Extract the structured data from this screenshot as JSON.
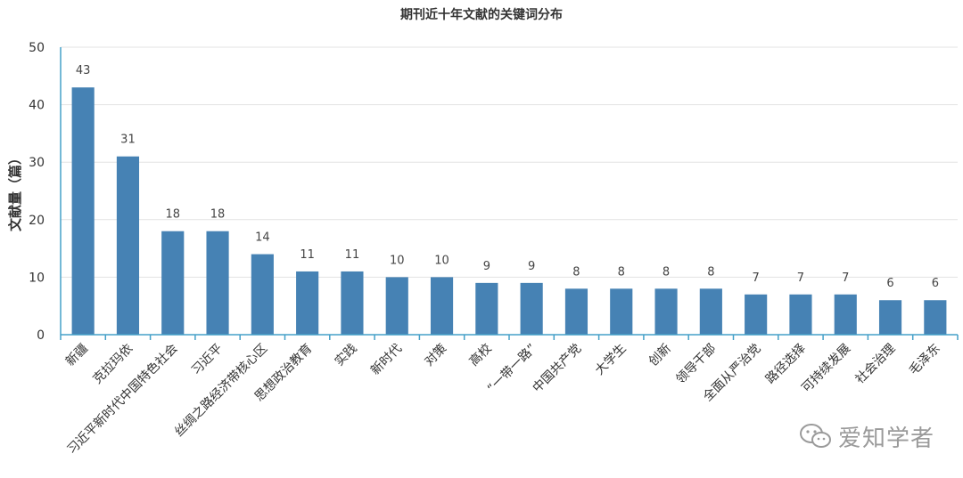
{
  "chart_data": {
    "type": "bar",
    "title": "期刊近十年文献的关键词分布",
    "xlabel": "",
    "ylabel": "文献量（篇）",
    "ylim": [
      0,
      50
    ],
    "yticks": [
      0,
      10,
      20,
      30,
      40,
      50
    ],
    "grid": true,
    "categories": [
      "新疆",
      "克拉玛依",
      "习近平新时代中国特色社会",
      "习近平",
      "丝绸之路经济带核心区",
      "思想政治教育",
      "实践",
      "新时代",
      "对策",
      "高校",
      "“一带一路”",
      "中国共产党",
      "大学生",
      "创新",
      "领导干部",
      "全面从严治党",
      "路径选择",
      "可持续发展",
      "社会治理",
      "毛泽东"
    ],
    "values": [
      43,
      31,
      18,
      18,
      14,
      11,
      11,
      10,
      10,
      9,
      9,
      8,
      8,
      8,
      8,
      7,
      7,
      7,
      6,
      6
    ],
    "colors": {
      "bar": "#4682b4",
      "axis": "#45a0c8",
      "grid": "#e3e3e3"
    }
  },
  "watermark": {
    "text": "爱知学者",
    "icon": "wechat-icon"
  }
}
